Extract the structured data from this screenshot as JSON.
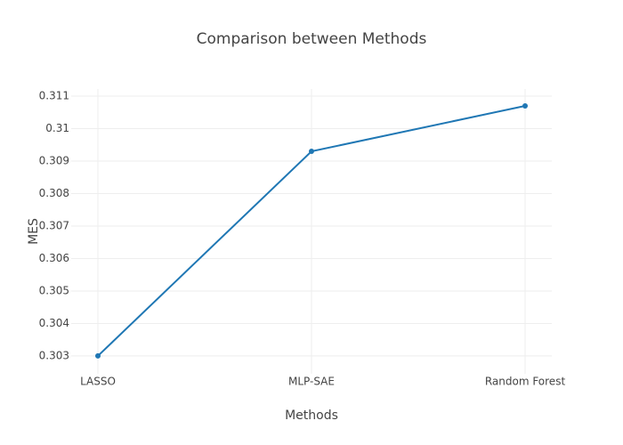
{
  "chart_data": {
    "type": "line",
    "title": "Comparison between Methods",
    "x_label": "Methods",
    "y_label": "MES",
    "categories": [
      "LASSO",
      "MLP-SAE",
      "Random Forest"
    ],
    "values": [
      0.303,
      0.3093,
      0.3107
    ],
    "color": "#1f77b4",
    "ylim": [
      0.30245,
      0.31122
    ],
    "yticks": [
      0.303,
      0.304,
      0.305,
      0.306,
      0.307,
      0.308,
      0.309,
      0.31,
      0.311
    ],
    "grid": true
  }
}
